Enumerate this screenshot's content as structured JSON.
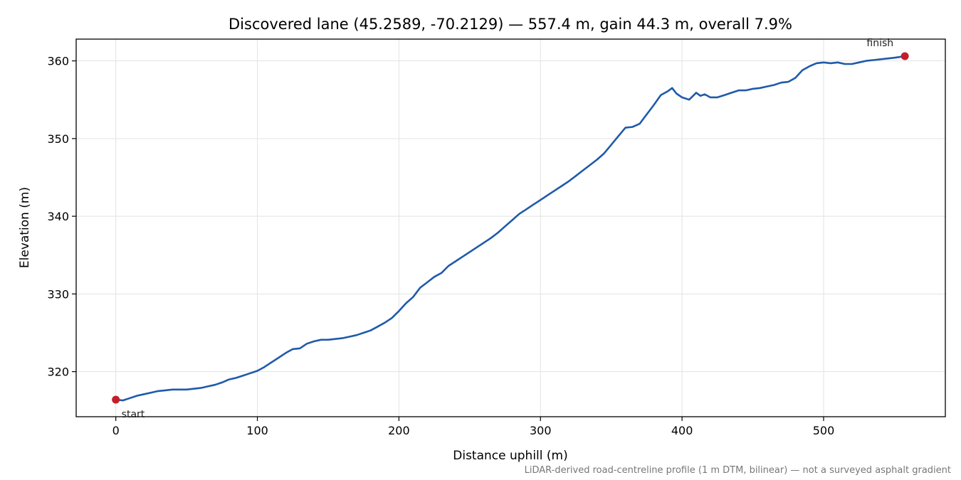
{
  "chart_data": {
    "type": "line",
    "title": "Discovered lane (45.2589, -70.2129) — 557.4 m, gain 44.3 m, overall 7.9%",
    "xlabel": "Distance uphill (m)",
    "ylabel": "Elevation (m)",
    "xlim": [
      -28,
      586
    ],
    "ylim": [
      314.2,
      362.8
    ],
    "xticks": [
      0,
      100,
      200,
      300,
      400,
      500
    ],
    "yticks": [
      320,
      330,
      340,
      350,
      360
    ],
    "grid": true,
    "footnote": "LiDAR-derived road-centreline profile (1 m DTM, bilinear) — not a surveyed asphalt gradient",
    "series": [
      {
        "color": "#1f5aaa",
        "x": [
          0,
          5,
          10,
          15,
          20,
          25,
          30,
          35,
          40,
          45,
          50,
          55,
          60,
          65,
          70,
          75,
          80,
          85,
          90,
          95,
          100,
          105,
          110,
          115,
          120,
          125,
          130,
          135,
          140,
          145,
          150,
          155,
          160,
          165,
          170,
          175,
          180,
          185,
          190,
          195,
          200,
          205,
          210,
          215,
          220,
          225,
          230,
          235,
          240,
          245,
          250,
          255,
          260,
          265,
          270,
          275,
          280,
          285,
          290,
          295,
          300,
          305,
          310,
          315,
          320,
          325,
          330,
          335,
          340,
          345,
          350,
          355,
          360,
          365,
          370,
          375,
          380,
          385,
          390,
          393,
          396,
          400,
          405,
          410,
          413,
          416,
          420,
          425,
          430,
          435,
          440,
          445,
          450,
          455,
          460,
          465,
          470,
          475,
          480,
          485,
          490,
          495,
          500,
          505,
          510,
          515,
          520,
          525,
          530,
          535,
          540,
          545,
          550,
          557.4
        ],
        "y": [
          316.4,
          316.3,
          316.6,
          316.9,
          317.1,
          317.3,
          317.5,
          317.6,
          317.7,
          317.7,
          317.7,
          317.8,
          317.9,
          318.1,
          318.3,
          318.6,
          319.0,
          319.2,
          319.5,
          319.8,
          320.1,
          320.6,
          321.2,
          321.8,
          322.4,
          322.9,
          323.0,
          323.6,
          323.9,
          324.1,
          324.1,
          324.2,
          324.3,
          324.5,
          324.7,
          325.0,
          325.3,
          325.8,
          326.3,
          326.9,
          327.8,
          328.8,
          329.6,
          330.8,
          331.5,
          332.2,
          332.7,
          333.6,
          334.2,
          334.8,
          335.4,
          336.0,
          336.6,
          337.2,
          337.9,
          338.7,
          339.5,
          340.3,
          340.9,
          341.5,
          342.1,
          342.7,
          343.3,
          343.9,
          344.5,
          345.2,
          345.9,
          346.6,
          347.3,
          348.1,
          349.2,
          350.3,
          351.4,
          351.5,
          351.9,
          353.1,
          354.3,
          355.6,
          356.1,
          356.5,
          355.8,
          355.3,
          355.0,
          355.9,
          355.5,
          355.7,
          355.3,
          355.3,
          355.6,
          355.9,
          356.2,
          356.2,
          356.4,
          356.5,
          356.7,
          356.9,
          357.2,
          357.3,
          357.8,
          358.8,
          359.3,
          359.7,
          359.8,
          359.7,
          359.8,
          359.6,
          359.6,
          359.8,
          360.0,
          360.1,
          360.2,
          360.3,
          360.4,
          360.6
        ]
      }
    ],
    "markers": [
      {
        "label": "start",
        "x": 0,
        "y": 316.4,
        "color": "#c41e2a"
      },
      {
        "label": "finish",
        "x": 557.4,
        "y": 360.6,
        "color": "#c41e2a"
      }
    ]
  }
}
